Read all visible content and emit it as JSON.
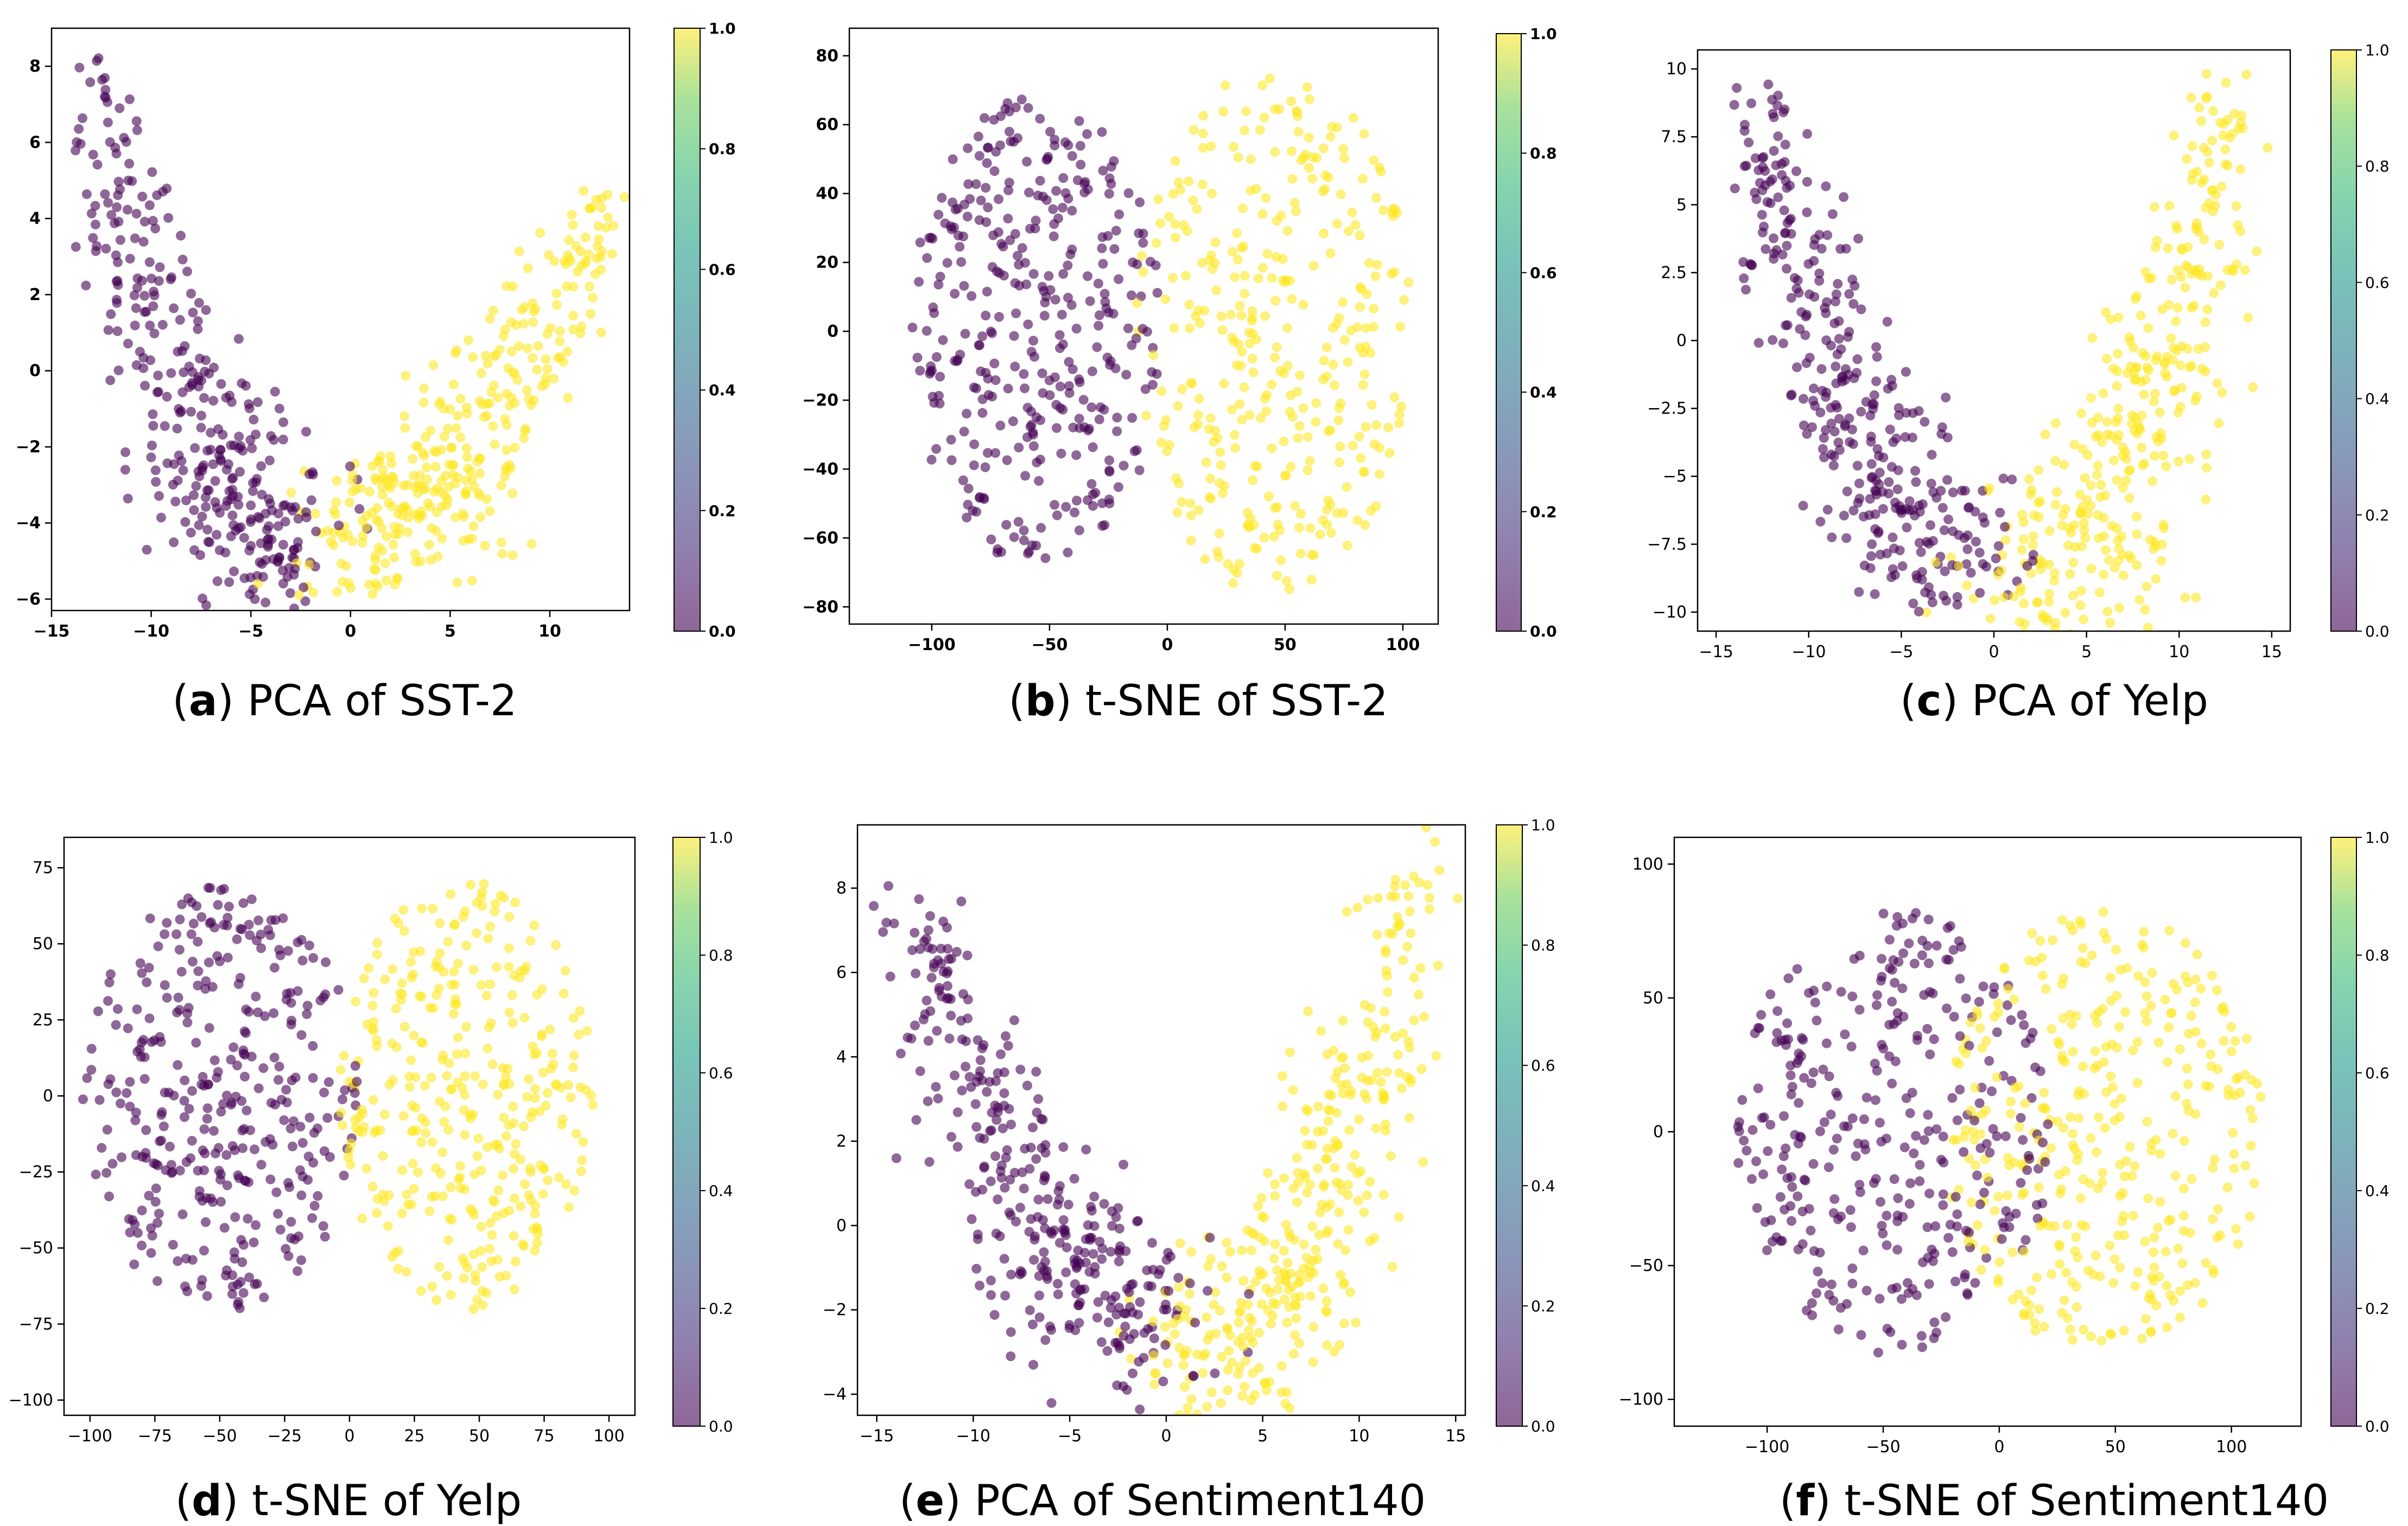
{
  "colorbar": {
    "ticks": [
      "0.0",
      "0.2",
      "0.4",
      "0.6",
      "0.8",
      "1.0"
    ],
    "colors": {
      "neg": "#440154",
      "pos": "#fde725"
    }
  },
  "chart_data": [
    {
      "type": "scatter",
      "id": "a",
      "caption_letter": "a",
      "caption_text": "PCA of SST-2",
      "xlim": [
        -15,
        14
      ],
      "ylim": [
        -6.3,
        9
      ],
      "xticks": [
        -15,
        -10,
        -5,
        0,
        5,
        10
      ],
      "yticks": [
        -6,
        -4,
        -2,
        0,
        2,
        4,
        6,
        8
      ],
      "tick_bold": true,
      "shape": "pca",
      "clusters": {
        "neg": {
          "tip": [
            -13,
            8
          ],
          "bottom": [
            -3,
            -4.8
          ]
        },
        "pos": {
          "tip": [
            12.5,
            4.6
          ],
          "bottom": [
            0,
            -4.5
          ]
        }
      },
      "colorbar": [
        0.0,
        1.0
      ],
      "legend": "none",
      "grid": false
    },
    {
      "type": "scatter",
      "id": "b",
      "caption_letter": "b",
      "caption_text": "t-SNE of SST-2",
      "xlim": [
        -135,
        115
      ],
      "ylim": [
        -85,
        88
      ],
      "xticks": [
        -100,
        -50,
        0,
        50,
        100
      ],
      "yticks": [
        -80,
        -60,
        -40,
        -20,
        0,
        20,
        40,
        60,
        80
      ],
      "tick_bold": true,
      "shape": "tsne",
      "clusters": {
        "neg": {
          "center": [
            -55,
            0
          ],
          "radius": [
            55,
            70
          ]
        },
        "pos": {
          "center": [
            45,
            0
          ],
          "radius": [
            60,
            78
          ]
        }
      },
      "colorbar": [
        0.0,
        1.0
      ],
      "legend": "none",
      "grid": false
    },
    {
      "type": "scatter",
      "id": "c",
      "caption_letter": "c",
      "caption_text": "PCA of Yelp",
      "xlim": [
        -16,
        16
      ],
      "ylim": [
        -10.7,
        10.7
      ],
      "xticks": [
        -15,
        -10,
        -5,
        0,
        5,
        10,
        15
      ],
      "yticks": [
        -10.0,
        -7.5,
        -5.0,
        -2.5,
        0.0,
        2.5,
        5.0,
        7.5,
        10.0
      ],
      "tick_bold": false,
      "shape": "pca",
      "clusters": {
        "neg": {
          "tip": [
            -13,
            9.3
          ],
          "bottom": [
            -2,
            -8
          ]
        },
        "pos": {
          "tip": [
            13,
            9.5
          ],
          "bottom": [
            2,
            -9
          ]
        }
      },
      "colorbar": [
        0.0,
        1.0
      ],
      "legend": "none",
      "grid": false
    },
    {
      "type": "scatter",
      "id": "d",
      "caption_letter": "d",
      "caption_text": "t-SNE of Yelp",
      "xlim": [
        -110,
        110
      ],
      "ylim": [
        -105,
        85
      ],
      "xticks": [
        -100,
        -75,
        -50,
        -25,
        0,
        25,
        50,
        75,
        100
      ],
      "yticks": [
        -100,
        -75,
        -50,
        -25,
        0,
        25,
        50,
        75
      ],
      "tick_bold": false,
      "shape": "tsne",
      "clusters": {
        "neg": {
          "center": [
            -50,
            0
          ],
          "radius": [
            55,
            72
          ]
        },
        "pos": {
          "center": [
            45,
            0
          ],
          "radius": [
            50,
            72
          ]
        }
      },
      "colorbar": [
        0.0,
        1.0
      ],
      "legend": "none",
      "grid": false
    },
    {
      "type": "scatter",
      "id": "e",
      "caption_letter": "e",
      "caption_text": "PCA of Sentiment140",
      "xlim": [
        -16,
        15.5
      ],
      "ylim": [
        -4.5,
        9.5
      ],
      "xticks": [
        -15,
        -10,
        -5,
        0,
        5,
        10,
        15
      ],
      "yticks": [
        -4,
        -2,
        0,
        2,
        4,
        6,
        8
      ],
      "tick_bold": false,
      "shape": "pca",
      "clusters": {
        "neg": {
          "tip": [
            -13.5,
            7.8
          ],
          "bottom": [
            -1,
            -2.5
          ]
        },
        "pos": {
          "tip": [
            13.5,
            9.2
          ],
          "bottom": [
            2,
            -3.5
          ]
        }
      },
      "colorbar": [
        0.0,
        1.0
      ],
      "legend": "none",
      "grid": false
    },
    {
      "type": "scatter",
      "id": "f",
      "caption_letter": "f",
      "caption_text": "t-SNE of Sentiment140",
      "xlim": [
        -140,
        130
      ],
      "ylim": [
        -110,
        110
      ],
      "xticks": [
        -100,
        -50,
        0,
        50,
        100
      ],
      "yticks": [
        -100,
        -50,
        0,
        50,
        100
      ],
      "tick_bold": false,
      "shape": "tsne",
      "clusters": {
        "neg": {
          "center": [
            -45,
            0
          ],
          "radius": [
            70,
            85
          ]
        },
        "pos": {
          "center": [
            45,
            0
          ],
          "radius": [
            70,
            85
          ]
        }
      },
      "colorbar": [
        0.0,
        1.0
      ],
      "legend": "none",
      "grid": false
    }
  ]
}
